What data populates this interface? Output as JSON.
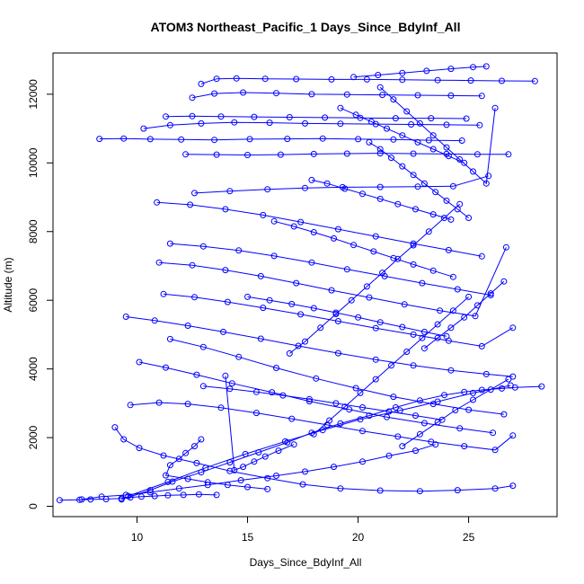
{
  "chart_data": {
    "type": "line",
    "title": "ATOM3 Northeast_Pacific_1 Days_Since_BdyInf_All",
    "xlabel": "Days_Since_BdyInf_All",
    "ylabel": "Altitude (m)",
    "xlim": [
      6.2,
      29.0
    ],
    "ylim": [
      -300,
      13200
    ],
    "xticks": [
      10,
      15,
      20,
      25
    ],
    "yticks": [
      0,
      2000,
      4000,
      6000,
      8000,
      10000,
      12000
    ],
    "grid": false,
    "legend": "none",
    "series_color": "#0000ff",
    "marker": "open-circle",
    "series": [
      {
        "x": [
          6.5,
          7.4,
          7.9,
          8.6,
          9.3,
          9.7,
          10.2,
          10.8,
          11.4,
          12.1,
          12.8,
          13.6
        ],
        "y": [
          180,
          190,
          200,
          210,
          230,
          260,
          280,
          300,
          320,
          330,
          350,
          330
        ]
      },
      {
        "x": [
          7.5,
          8.4,
          9.5,
          10.6,
          11.9,
          13.2,
          14.7,
          16.3,
          17.6,
          18.9,
          20.2,
          21.4,
          22.6,
          23.5
        ],
        "y": [
          200,
          280,
          330,
          410,
          520,
          620,
          760,
          890,
          1010,
          1150,
          1300,
          1470,
          1620,
          1800
        ]
      },
      {
        "x": [
          9.3,
          10.6,
          11.6,
          12.9,
          14.2,
          15.5,
          16.8,
          17.9,
          19.2,
          20.5,
          21.7,
          22.8,
          23.9,
          24.8,
          25.6,
          26.5,
          27.1,
          28.3
        ],
        "y": [
          200,
          470,
          720,
          990,
          1280,
          1570,
          1860,
          2140,
          2410,
          2640,
          2880,
          3080,
          3240,
          3330,
          3390,
          3430,
          3460,
          3490
        ]
      },
      {
        "x": [
          9.6,
          11.4,
          13.1,
          14.9,
          16.7,
          18.4,
          20.1,
          21.9,
          23.6,
          25.2,
          26.9
        ],
        "y": [
          300,
          710,
          1120,
          1520,
          1890,
          2220,
          2530,
          2790,
          3050,
          3300,
          3520
        ]
      },
      {
        "x": [
          9.0,
          9.4,
          10.1,
          11.2,
          12.7,
          14.2,
          15.9,
          17.5,
          19.2,
          21.0,
          22.8,
          24.5,
          26.2,
          27.0
        ],
        "y": [
          2300,
          1950,
          1700,
          1480,
          1260,
          1030,
          820,
          640,
          520,
          460,
          440,
          470,
          520,
          600
        ]
      },
      {
        "x": [
          9.7,
          11.0,
          12.3,
          13.8,
          15.4,
          17.0,
          18.6,
          20.2,
          21.8,
          23.3,
          24.8,
          26.2,
          27.0
        ],
        "y": [
          2950,
          3020,
          2980,
          2870,
          2720,
          2550,
          2370,
          2190,
          2030,
          1880,
          1750,
          1640,
          2060
        ]
      },
      {
        "x": [
          10.1,
          11.3,
          12.7,
          14.3,
          16.1,
          17.8,
          19.6,
          21.3,
          23.0,
          24.6,
          26.1
        ],
        "y": [
          4200,
          4040,
          3830,
          3580,
          3320,
          3060,
          2820,
          2600,
          2420,
          2270,
          2140
        ]
      },
      {
        "x": [
          11.5,
          13.0,
          14.6,
          16.3,
          18.1,
          19.9,
          21.6,
          23.4,
          25.0,
          26.6
        ],
        "y": [
          4870,
          4640,
          4350,
          4030,
          3720,
          3440,
          3190,
          2980,
          2810,
          2680
        ]
      },
      {
        "x": [
          9.5,
          10.8,
          12.3,
          13.9,
          15.6,
          17.3,
          19.1,
          20.8,
          22.5,
          24.2,
          25.8,
          27.0
        ],
        "y": [
          5520,
          5410,
          5260,
          5080,
          4880,
          4670,
          4460,
          4270,
          4100,
          3960,
          3850,
          3780
        ]
      },
      {
        "x": [
          11.2,
          12.6,
          14.1,
          15.7,
          17.4,
          19.1,
          20.8,
          22.5,
          24.1,
          25.6,
          27.0
        ],
        "y": [
          6180,
          6090,
          5950,
          5780,
          5590,
          5390,
          5190,
          5000,
          4820,
          4660,
          5200
        ]
      },
      {
        "x": [
          11.0,
          12.5,
          14.0,
          15.6,
          17.2,
          18.8,
          20.5,
          22.1,
          23.7,
          25.3,
          26.7
        ],
        "y": [
          7100,
          7020,
          6880,
          6700,
          6500,
          6290,
          6080,
          5880,
          5700,
          5540,
          7540
        ]
      },
      {
        "x": [
          11.5,
          13.0,
          14.6,
          16.2,
          17.9,
          19.5,
          21.2,
          22.9,
          24.5,
          26.0
        ],
        "y": [
          7650,
          7570,
          7450,
          7290,
          7100,
          6900,
          6700,
          6500,
          6320,
          6150
        ]
      },
      {
        "x": [
          10.9,
          12.4,
          14.0,
          15.7,
          17.4,
          19.1,
          20.8,
          22.5,
          24.1,
          25.6
        ],
        "y": [
          8850,
          8780,
          8650,
          8480,
          8280,
          8070,
          7860,
          7650,
          7460,
          7280
        ]
      },
      {
        "x": [
          12.6,
          14.2,
          15.9,
          17.6,
          19.3,
          21.0,
          22.7,
          24.3,
          25.9
        ],
        "y": [
          9120,
          9180,
          9230,
          9270,
          9290,
          9300,
          9310,
          9320,
          9620
        ]
      },
      {
        "x": [
          12.2,
          13.6,
          15.0,
          16.5,
          18.0,
          19.5,
          21.0,
          22.5,
          24.0,
          25.4,
          26.8
        ],
        "y": [
          10250,
          10240,
          10230,
          10240,
          10260,
          10270,
          10280,
          10270,
          10260,
          10250,
          10250
        ]
      },
      {
        "x": [
          8.3,
          9.4,
          10.6,
          12.0,
          13.5,
          15.1,
          16.8,
          18.4,
          20.0,
          21.6,
          23.2,
          24.7
        ],
        "y": [
          10700,
          10710,
          10690,
          10680,
          10670,
          10690,
          10700,
          10710,
          10690,
          10680,
          10660,
          10650
        ]
      },
      {
        "x": [
          10.3,
          11.5,
          12.9,
          14.4,
          16.0,
          17.6,
          19.2,
          20.8,
          22.4,
          24.0,
          25.5
        ],
        "y": [
          11000,
          11100,
          11150,
          11180,
          11170,
          11150,
          11140,
          11130,
          11120,
          11110,
          11100
        ]
      },
      {
        "x": [
          11.3,
          12.5,
          13.8,
          15.3,
          16.9,
          18.5,
          20.1,
          21.7,
          23.3,
          24.9
        ],
        "y": [
          11350,
          11360,
          11350,
          11340,
          11330,
          11320,
          11310,
          11300,
          11300,
          11290
        ]
      },
      {
        "x": [
          12.5,
          13.5,
          14.8,
          16.3,
          17.9,
          19.5,
          21.1,
          22.7,
          24.2,
          25.6
        ],
        "y": [
          11900,
          12020,
          12050,
          12030,
          12000,
          11990,
          11980,
          11970,
          11960,
          11950
        ]
      },
      {
        "x": [
          12.9,
          13.6,
          14.5,
          15.8,
          17.2,
          18.8,
          20.4,
          22.0,
          23.6,
          25.1,
          26.5,
          28.0
        ],
        "y": [
          12300,
          12450,
          12460,
          12450,
          12440,
          12430,
          12430,
          12420,
          12410,
          12400,
          12390,
          12380
        ]
      },
      {
        "x": [
          19.8,
          20.9,
          22.0,
          23.1,
          24.2,
          25.2,
          25.8
        ],
        "y": [
          12500,
          12560,
          12620,
          12680,
          12740,
          12790,
          12810
        ]
      },
      {
        "x": [
          17.9,
          18.6,
          19.4,
          20.2,
          21.0,
          21.8,
          22.6,
          23.4,
          24.2
        ],
        "y": [
          9500,
          9400,
          9250,
          9100,
          8950,
          8800,
          8650,
          8500,
          8350
        ]
      },
      {
        "x": [
          16.2,
          17.1,
          18.0,
          18.9,
          19.8,
          20.7,
          21.6,
          22.5,
          23.4,
          24.3
        ],
        "y": [
          8300,
          8150,
          7980,
          7800,
          7610,
          7420,
          7230,
          7040,
          6860,
          6680
        ]
      },
      {
        "x": [
          15.0,
          16.0,
          17.0,
          18.0,
          19.0,
          20.0,
          21.0,
          22.0,
          23.0,
          24.0
        ],
        "y": [
          6100,
          6000,
          5890,
          5770,
          5640,
          5500,
          5360,
          5220,
          5080,
          4950
        ]
      },
      {
        "x": [
          13.0,
          14.2,
          15.4,
          16.6,
          17.8,
          19.0,
          20.2,
          21.4,
          22.6,
          23.8
        ],
        "y": [
          3500,
          3420,
          3330,
          3230,
          3120,
          3000,
          2880,
          2760,
          2640,
          2520
        ]
      },
      {
        "x": [
          14.0,
          14.4,
          14.8,
          15.3,
          15.8,
          16.4,
          17.1
        ],
        "y": [
          3800,
          1050,
          1150,
          1300,
          1450,
          1620,
          1800
        ]
      },
      {
        "x": [
          16.9,
          17.6,
          18.3,
          19.0,
          19.7,
          20.4,
          21.1,
          21.8,
          22.5,
          23.2,
          23.9,
          24.6
        ],
        "y": [
          4450,
          4800,
          5200,
          5600,
          6000,
          6400,
          6800,
          7200,
          7600,
          8000,
          8400,
          8800
        ]
      },
      {
        "x": [
          18.0,
          18.7,
          19.4,
          20.1,
          20.8,
          21.5,
          22.2,
          22.9,
          23.6,
          24.3,
          25.0
        ],
        "y": [
          2100,
          2500,
          2900,
          3300,
          3700,
          4100,
          4500,
          4900,
          5300,
          5700,
          6100
        ]
      },
      {
        "x": [
          20.5,
          21.0,
          21.5,
          22.0,
          22.5,
          23.0,
          23.5,
          24.0,
          24.5,
          25.0
        ],
        "y": [
          10600,
          10400,
          10150,
          9900,
          9650,
          9400,
          9150,
          8900,
          8650,
          8400
        ]
      },
      {
        "x": [
          19.2,
          19.9,
          20.6,
          21.3,
          22.0,
          22.7,
          23.4,
          24.1,
          24.8
        ],
        "y": [
          11600,
          11400,
          11200,
          11000,
          10800,
          10600,
          10400,
          10200,
          10000
        ]
      },
      {
        "x": [
          21.0,
          21.6,
          22.2,
          22.8,
          23.4,
          24.0,
          24.6,
          25.2,
          25.8,
          26.2
        ],
        "y": [
          12200,
          11850,
          11500,
          11150,
          10800,
          10450,
          10100,
          9750,
          9400,
          11600
        ]
      },
      {
        "x": [
          22.0,
          22.8,
          23.6,
          24.4,
          25.2,
          26.0,
          26.8
        ],
        "y": [
          1750,
          2100,
          2450,
          2800,
          3100,
          3400,
          3700
        ]
      },
      {
        "x": [
          23.0,
          23.6,
          24.2,
          24.8,
          25.4,
          26.0,
          26.6
        ],
        "y": [
          4600,
          4900,
          5200,
          5500,
          5850,
          6200,
          6550
        ]
      },
      {
        "x": [
          12.9,
          12.6,
          12.2,
          11.9,
          11.5,
          11.3,
          12.3,
          13.2,
          14.1,
          15.0,
          15.9
        ],
        "y": [
          1950,
          1750,
          1550,
          1380,
          1200,
          900,
          800,
          700,
          620,
          560,
          500
        ]
      }
    ]
  }
}
